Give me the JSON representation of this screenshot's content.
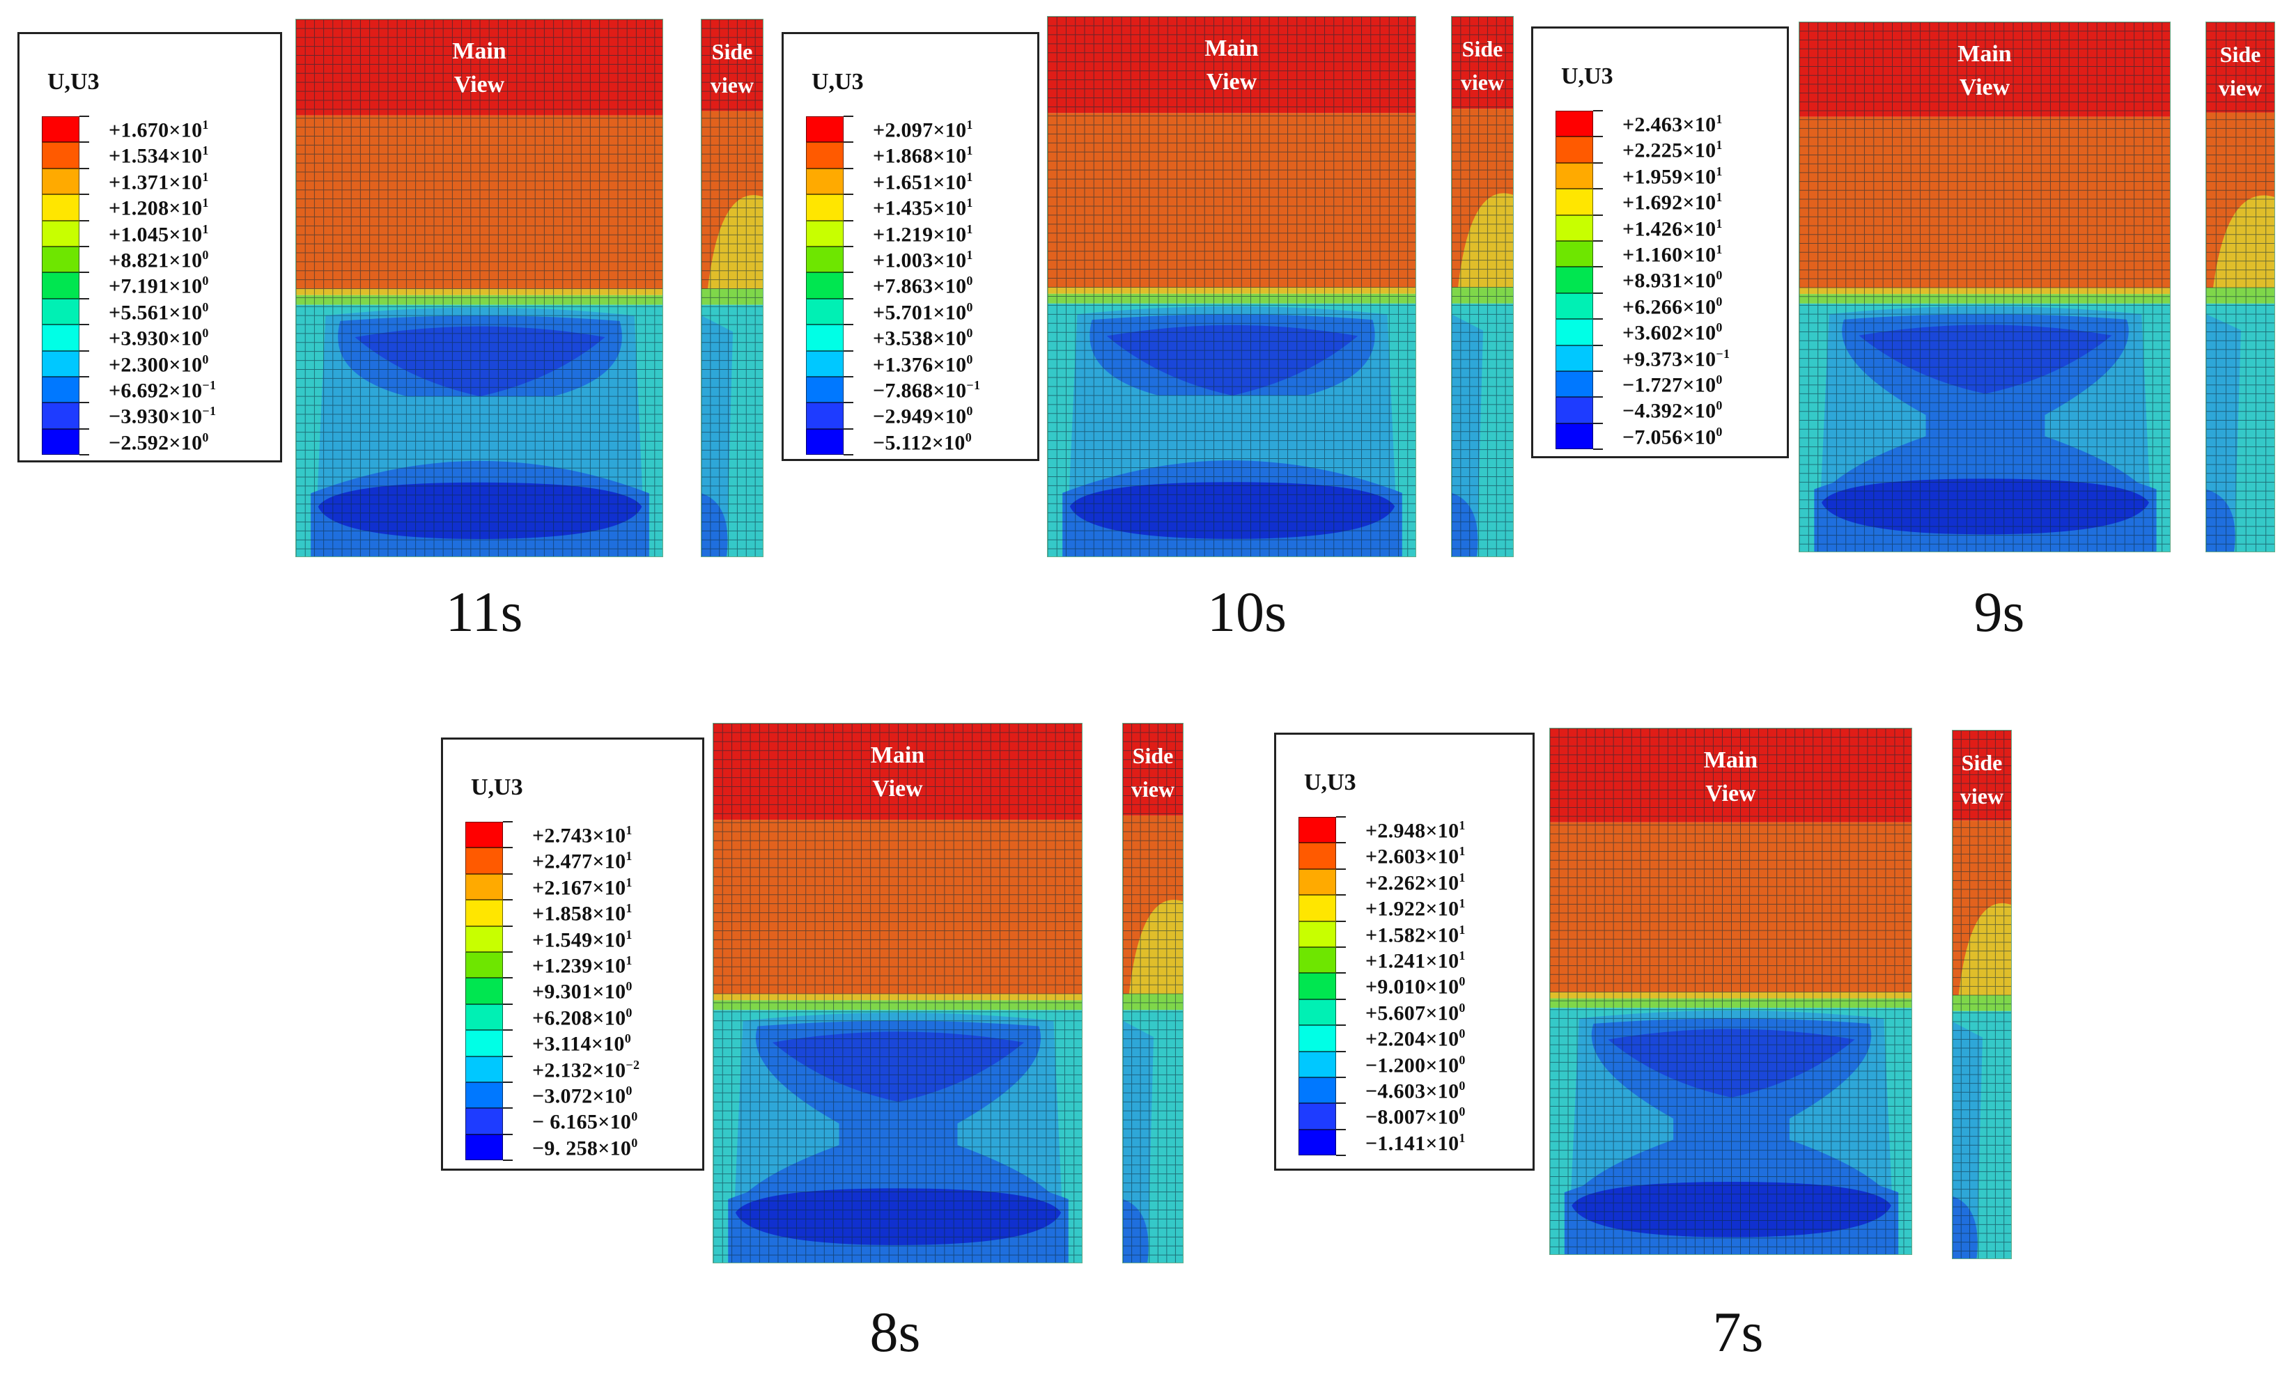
{
  "legend_title": "U,U3",
  "labels": {
    "main_view": "Main View",
    "side_view": "Side view"
  },
  "colors": {
    "scale": [
      "#ff0000",
      "#ff5a00",
      "#ffaa00",
      "#ffe600",
      "#c8ff00",
      "#6ee600",
      "#00e650",
      "#00f0b4",
      "#00ffe6",
      "#00c8ff",
      "#0078ff",
      "#1e3cff",
      "#0000ff"
    ],
    "contour": {
      "red": "#e01d17",
      "orange": "#e2621d",
      "yellow": "#e0be2a",
      "green": "#7fd74a",
      "cyan": "#35c9c8",
      "lightblue": "#2ea7d8",
      "midblue": "#1f6fde",
      "blue": "#1a47d9",
      "deepblue": "#1030cf"
    },
    "grid_line": "#0c2a3a"
  },
  "panels": [
    {
      "id": "11s",
      "time_label": "11s",
      "legend": [
        "+1.670×10^1",
        "+1.534×10^1",
        "+1.371×10^1",
        "+1.208×10^1",
        "+1.045×10^1",
        "+8.821×10^0",
        "+7.191×10^0",
        "+5.561×10^0",
        "+3.930×10^0",
        "+2.300×10^0",
        "+6.692×10^−1",
        "−3.930×10^−1",
        "−2.592×10^0"
      ]
    },
    {
      "id": "10s",
      "time_label": "10s",
      "legend": [
        "+2.097×10^1",
        "+1.868×10^1",
        "+1.651×10^1",
        "+1.435×10^1",
        "+1.219×10^1",
        "+1.003×10^1",
        "+7.863×10^0",
        "+5.701×10^0",
        "+3.538×10^0",
        "+1.376×10^0",
        "−7.868×10^−1",
        "−2.949×10^0",
        "−5.112×10^0"
      ]
    },
    {
      "id": "9s",
      "time_label": "9s",
      "legend": [
        "+2.463×10^1",
        "+2.225×10^1",
        "+1.959×10^1",
        "+1.692×10^1",
        "+1.426×10^1",
        "+1.160×10^1",
        "+8.931×10^0",
        "+6.266×10^0",
        "+3.602×10^0",
        "+9.373×10^−1",
        "−1.727×10^0",
        "−4.392×10^0",
        "−7.056×10^0"
      ]
    },
    {
      "id": "8s",
      "time_label": "8s",
      "legend": [
        "+2.743×10^1",
        "+2.477×10^1",
        "+2.167×10^1",
        "+1.858×10^1",
        "+1.549×10^1",
        "+1.239×10^1",
        "+9.301×10^0",
        "+6.208×10^0",
        "+3.114×10^0",
        "+2.132×10^−2",
        "−3.072×10^0",
        "− 6.165×10^0",
        "−9. 258×10^0"
      ]
    },
    {
      "id": "7s",
      "time_label": "7s",
      "legend": [
        "+2.948×10^1",
        "+2.603×10^1",
        "+2.262×10^1",
        "+1.922×10^1",
        "+1.582×10^1",
        "+1.241×10^1",
        "+9.010×10^0",
        "+5.607×10^0",
        "+2.204×10^0",
        "−1.200×10^0",
        "−4.603×10^0",
        "−8.007×10^0",
        "−1.141×10^1"
      ]
    }
  ]
}
